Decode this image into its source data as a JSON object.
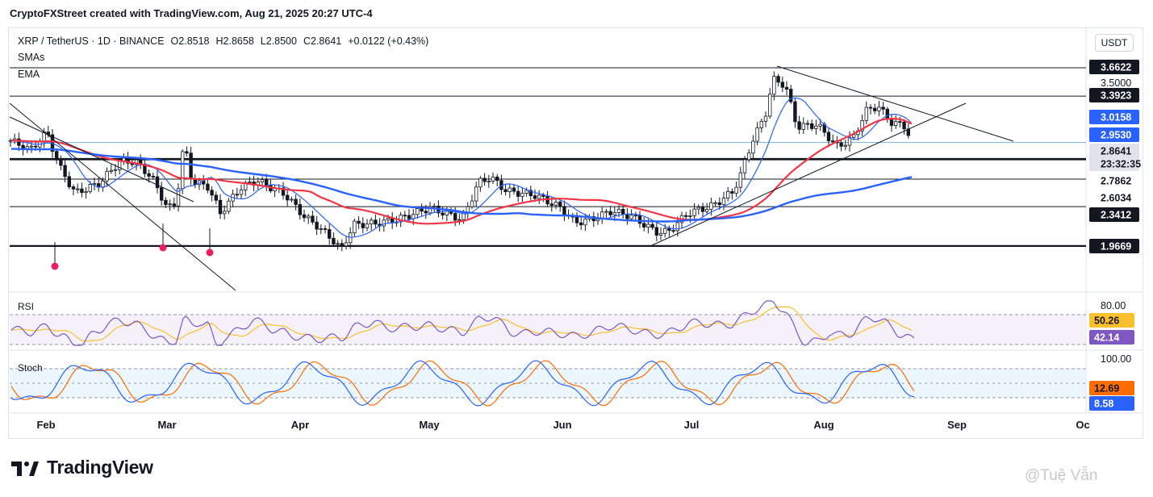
{
  "caption": "CryptoFXStreet created with TradingView.com, Aug 21, 2025 20:27 UTC-4",
  "header": {
    "symbol": "XRP / TetherUS · 1D · BINANCE",
    "open": "O2.8518",
    "high": "H2.8658",
    "low": "L2.8500",
    "close": "C2.8641",
    "change": "+0.0122 (+0.43%)",
    "currency": "USDT"
  },
  "indicators": {
    "sma": "SMAs",
    "ema": "EMA",
    "rsi": "RSI",
    "stoch": "Stoch"
  },
  "brand": "TradingView",
  "watermark": "@Tuệ Vẫn",
  "colors": {
    "up": "#131722",
    "down": "#131722",
    "sma_fast": "#2962ff",
    "ema_mid": "#f23645",
    "ema_slow": "#2962ff",
    "rsi": "#7e57c2",
    "rsi_ma": "#fbc02d",
    "stoch_k": "#2962ff",
    "stoch_d": "#ff6d00"
  },
  "chart_data": [
    {
      "type": "candlestick",
      "x_ticks": [
        "Feb",
        "Mar",
        "Apr",
        "May",
        "Jun",
        "Jul",
        "Aug",
        "Sep",
        "Oc"
      ],
      "price_axis_labels": [
        {
          "value": 3.6622,
          "text": "3.6622",
          "style": "dark"
        },
        {
          "value": 3.5,
          "text": "3.5000",
          "style": "plain"
        },
        {
          "value": 3.3923,
          "text": "3.3923",
          "style": "dark"
        },
        {
          "value": 3.0158,
          "text": "3.0158",
          "style": "blue"
        },
        {
          "value": 2.953,
          "text": "2.9530",
          "style": "blue"
        },
        {
          "value": 2.8641,
          "text": "2.8641",
          "style": "grey"
        },
        {
          "value": 2.84,
          "text": "23:32:35",
          "style": "grey"
        },
        {
          "value": 2.7862,
          "text": "2.7862",
          "style": "plain"
        },
        {
          "value": 2.6034,
          "text": "2.6034",
          "style": "plain"
        },
        {
          "value": 2.3412,
          "text": "2.3412",
          "style": "plain"
        },
        {
          "value": 1.9669,
          "text": "1.9669",
          "style": "plain"
        }
      ],
      "horizontal_levels": [
        3.6622,
        3.3923,
        2.953,
        2.786,
        2.6034,
        2.3412,
        1.9669
      ],
      "last_price": 2.8641,
      "sma_fast_last": 3.0158,
      "ema_mid_last": 2.953,
      "ema_slow_last": 2.6034
    },
    {
      "type": "line",
      "name": "RSI",
      "levels": [
        80,
        50.26,
        42.14
      ],
      "labels": [
        {
          "text": "80.00"
        },
        {
          "text": "50.26"
        },
        {
          "text": "42.14"
        }
      ],
      "rsi_last": 42.14,
      "rsi_ma_last": 50.26
    },
    {
      "type": "line",
      "name": "Stoch",
      "labels": [
        {
          "text": "100.00"
        },
        {
          "text": "12.69"
        },
        {
          "text": "8.58"
        }
      ],
      "k_last": 8.58,
      "d_last": 12.69
    }
  ]
}
